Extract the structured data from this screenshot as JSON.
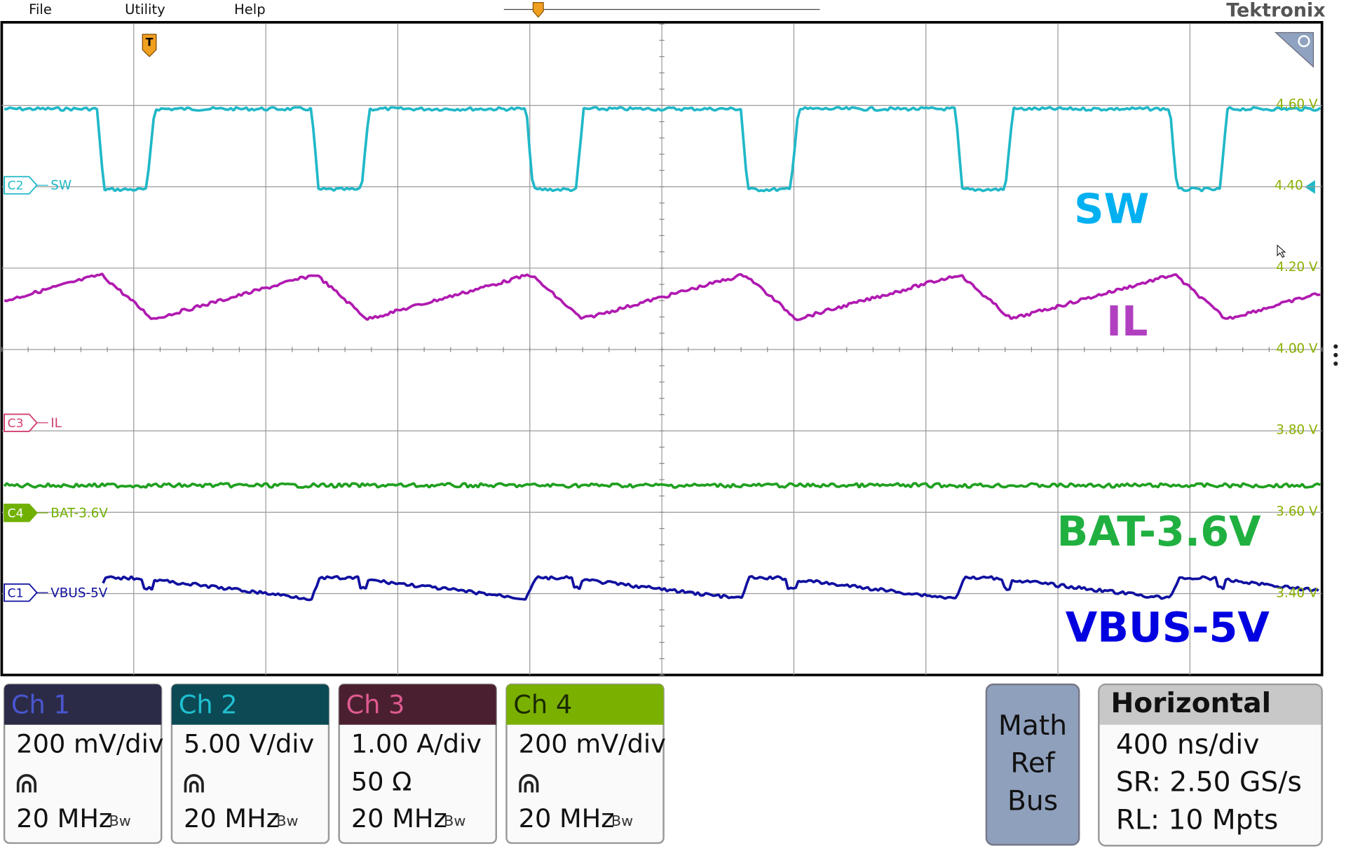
{
  "menu": [
    "File",
    "Utility",
    "Help"
  ],
  "brand": "Tektronix",
  "trigger_marker": "T",
  "scale_labels": [
    "4.60 V",
    "4.40",
    "4.20 V",
    "4.00 V",
    "3.80 V",
    "3.60 V",
    "3.40 V"
  ],
  "channel_markers": [
    {
      "id": "C2",
      "label": "SW"
    },
    {
      "id": "C3",
      "label": "IL"
    },
    {
      "id": "C4",
      "label": "BAT-3.6V"
    },
    {
      "id": "C1",
      "label": "VBUS-5V"
    }
  ],
  "annotations": [
    "SW",
    "IL",
    "BAT-3.6V",
    "VBUS-5V"
  ],
  "channels": [
    {
      "name": "Ch 1",
      "scale": "200 mV/div",
      "bandwidth": "20 MHz",
      "bw_icon": "Bw"
    },
    {
      "name": "Ch 2",
      "scale": "5.00 V/div",
      "bandwidth": "20 MHz",
      "bw_icon": "Bw"
    },
    {
      "name": "Ch 3",
      "scale": "1.00 A/div",
      "termination": "50 Ω",
      "bandwidth": "20 MHz",
      "bw_icon": "Bw"
    },
    {
      "name": "Ch 4",
      "scale": "200 mV/div",
      "bandwidth": "20 MHz",
      "bw_icon": "Bw"
    }
  ],
  "math_ref_bus": [
    "Math",
    "Ref",
    "Bus"
  ],
  "horizontal": {
    "title": "Horizontal",
    "lines": [
      "400 ns/div",
      "SR: 2.50 GS/s",
      "RL: 10 Mpts"
    ]
  }
}
